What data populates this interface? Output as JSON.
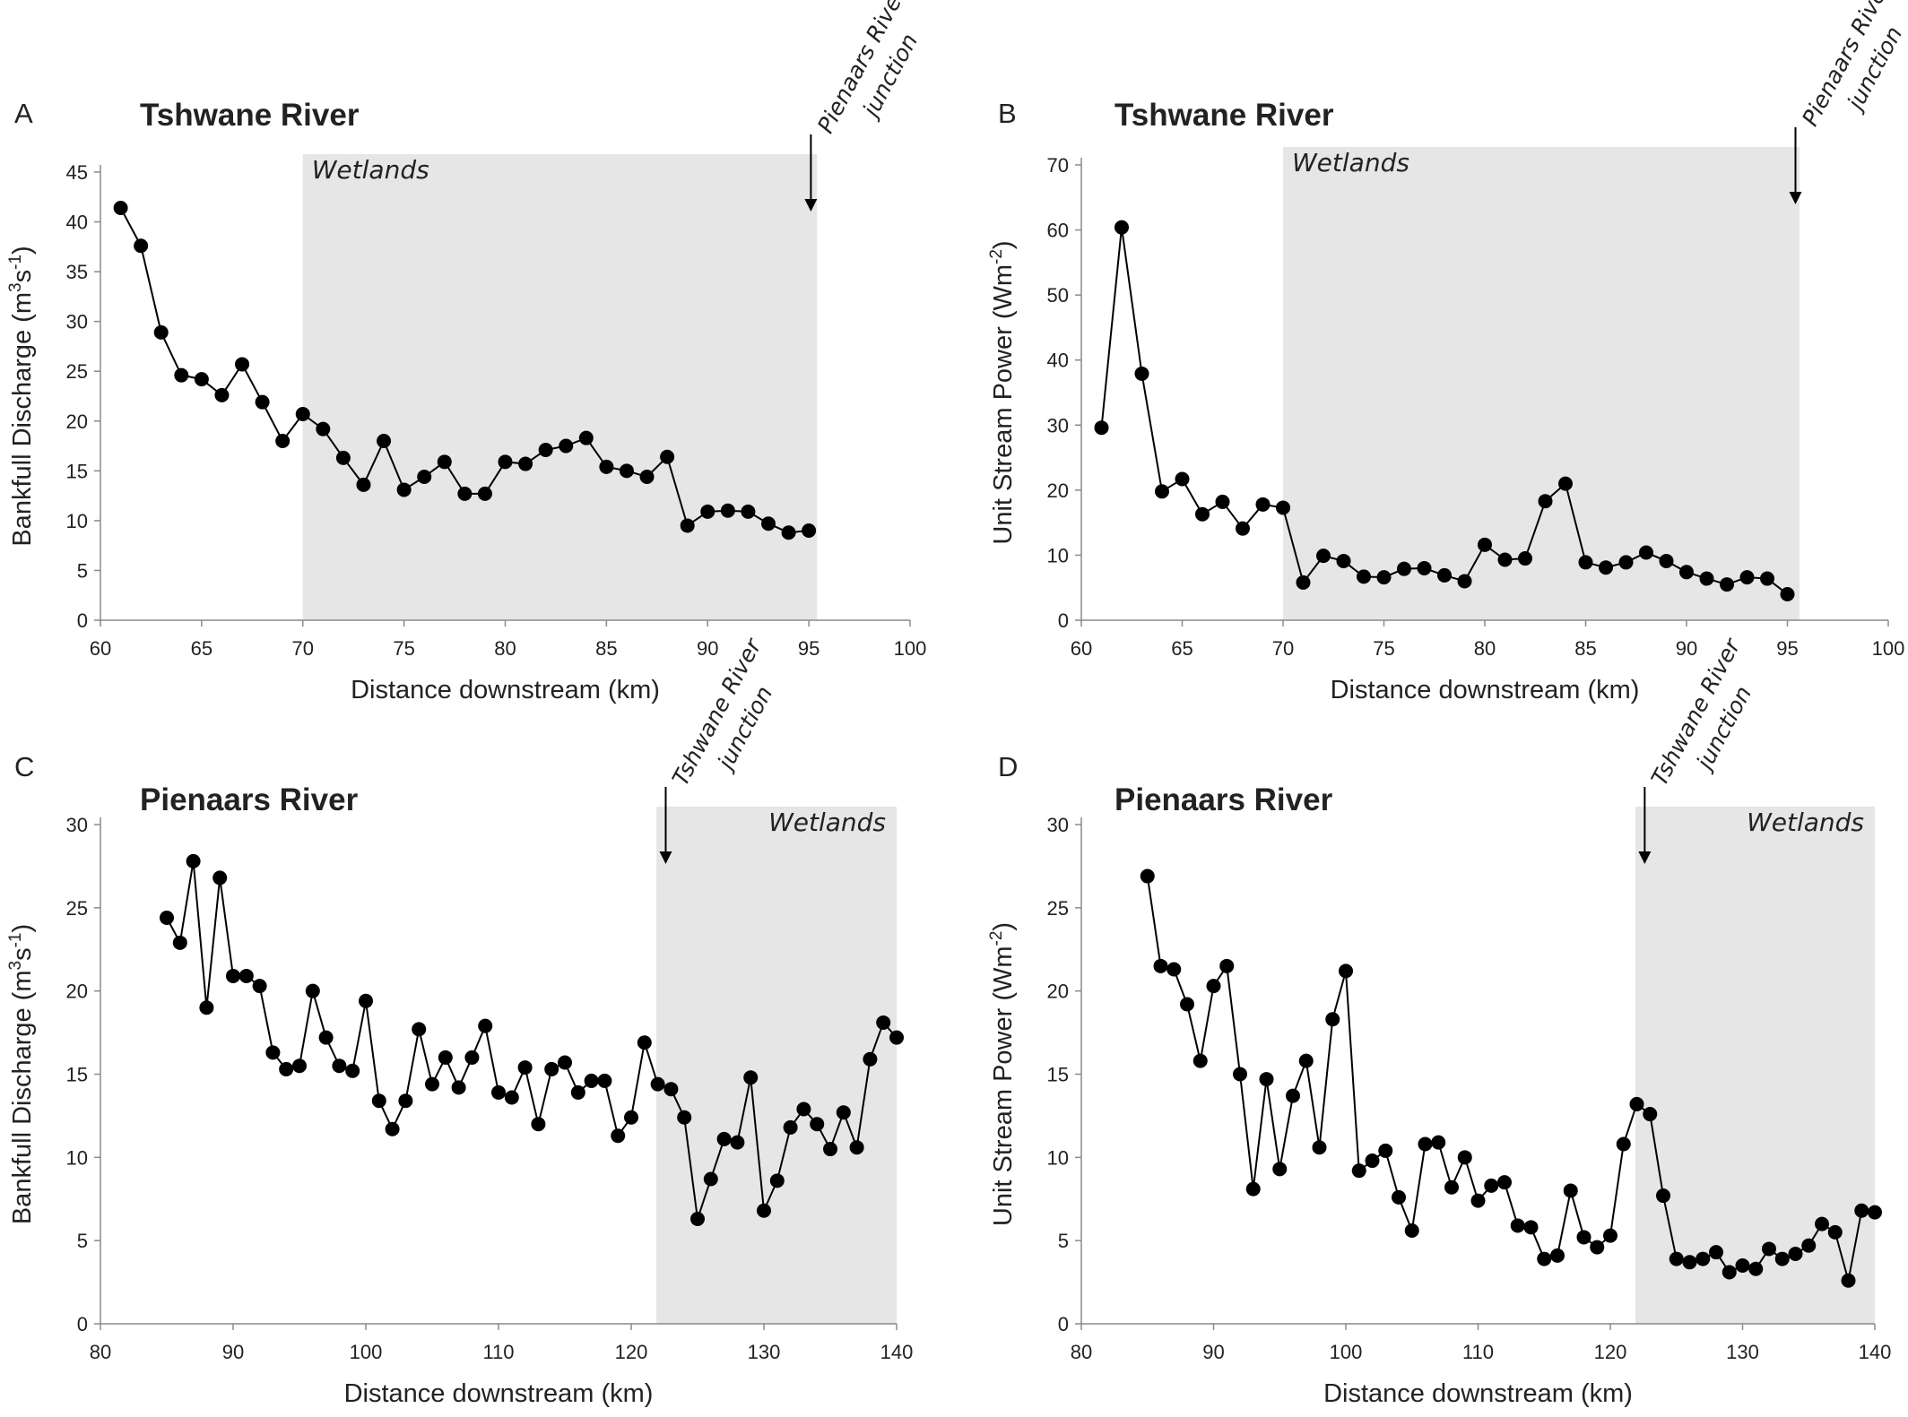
{
  "chart_data": [
    {
      "panel": "A",
      "type": "line",
      "title": "Tshwane River",
      "xlabel": "Distance downstream (km)",
      "ylabel": "Bankfull Discharge (m³s⁻¹)",
      "ylabel_parts": [
        "Bankfull Discharge (m",
        "3",
        "s",
        "-1",
        ")"
      ],
      "xlim": [
        60,
        100
      ],
      "ylim": [
        0,
        45
      ],
      "xticks": [
        60,
        65,
        70,
        75,
        80,
        85,
        90,
        95,
        100
      ],
      "yticks": [
        0,
        5,
        10,
        15,
        20,
        25,
        30,
        35,
        40,
        45
      ],
      "region": {
        "label": "Wetlands",
        "x_start": 70,
        "x_end": 95.4
      },
      "junction": {
        "lines": [
          "Pienaars River",
          "junction"
        ],
        "x": 95.1
      },
      "x": [
        61,
        62,
        63,
        64,
        65,
        66,
        67,
        68,
        69,
        70,
        71,
        72,
        73,
        74,
        75,
        76,
        77,
        78,
        79,
        80,
        81,
        82,
        83,
        84,
        85,
        86,
        87,
        88,
        89,
        90,
        91,
        92,
        93,
        94,
        95
      ],
      "values": [
        41.4,
        37.6,
        28.9,
        24.6,
        24.2,
        22.6,
        25.7,
        21.9,
        18.0,
        20.7,
        19.2,
        16.3,
        13.6,
        18.0,
        13.1,
        14.4,
        15.9,
        12.7,
        12.7,
        15.9,
        15.7,
        17.1,
        17.5,
        18.3,
        15.4,
        15.0,
        14.4,
        16.4,
        9.5,
        10.9,
        11.0,
        10.9,
        9.7,
        8.8,
        9.0
      ]
    },
    {
      "panel": "B",
      "type": "line",
      "title": "Tshwane River",
      "xlabel": "Distance downstream (km)",
      "ylabel": "Unit Stream Power (Wm⁻²)",
      "ylabel_parts": [
        "Unit Stream Power (Wm",
        "-2",
        ")"
      ],
      "xlim": [
        60,
        100
      ],
      "ylim": [
        0,
        70
      ],
      "xticks": [
        60,
        65,
        70,
        75,
        80,
        85,
        90,
        95,
        100
      ],
      "yticks": [
        0,
        10,
        20,
        30,
        40,
        50,
        60,
        70
      ],
      "region": {
        "label": "Wetlands",
        "x_start": 70,
        "x_end": 95.6
      },
      "junction": {
        "lines": [
          "Pienaars River",
          "junction"
        ],
        "x": 95.4
      },
      "x": [
        61,
        62,
        63,
        64,
        65,
        66,
        67,
        68,
        69,
        70,
        71,
        72,
        73,
        74,
        75,
        76,
        77,
        78,
        79,
        80,
        81,
        82,
        83,
        84,
        85,
        86,
        87,
        88,
        89,
        90,
        91,
        92,
        93,
        94,
        95
      ],
      "values": [
        29.6,
        60.4,
        37.9,
        19.8,
        21.7,
        16.3,
        18.2,
        14.1,
        17.8,
        17.3,
        5.8,
        9.9,
        9.1,
        6.7,
        6.6,
        7.9,
        8.0,
        6.9,
        6.0,
        11.6,
        9.3,
        9.5,
        18.3,
        21.0,
        8.9,
        8.1,
        8.9,
        10.4,
        9.1,
        7.4,
        6.4,
        5.5,
        6.6,
        6.4,
        4.0
      ]
    },
    {
      "panel": "C",
      "type": "line",
      "title": "Pienaars River",
      "xlabel": "Distance downstream (km)",
      "ylabel": "Bankfull Discharge (m³s⁻¹)",
      "ylabel_parts": [
        "Bankfull Discharge (m",
        "3",
        "s",
        "-1",
        ")"
      ],
      "xlim": [
        80,
        140
      ],
      "ylim": [
        0,
        30
      ],
      "xticks": [
        80,
        90,
        100,
        110,
        120,
        130,
        140
      ],
      "yticks": [
        0,
        5,
        10,
        15,
        20,
        25,
        30
      ],
      "region": {
        "label": "Wetlands",
        "x_start": 121.9,
        "x_end": 140
      },
      "junction": {
        "lines": [
          "Tshwane River",
          "junction"
        ],
        "x": 122.6
      },
      "x": [
        85,
        86,
        87,
        88,
        89,
        90,
        91,
        92,
        93,
        94,
        95,
        96,
        97,
        98,
        99,
        100,
        101,
        102,
        103,
        104,
        105,
        106,
        107,
        108,
        109,
        110,
        111,
        112,
        113,
        114,
        115,
        116,
        117,
        118,
        119,
        120,
        121,
        122,
        123,
        124,
        125,
        126,
        127,
        128,
        129,
        130,
        131,
        132,
        133,
        134,
        135,
        136,
        137,
        138,
        139,
        140
      ],
      "values": [
        24.4,
        22.9,
        27.8,
        19.0,
        26.8,
        20.9,
        20.9,
        20.3,
        16.3,
        15.3,
        15.5,
        20.0,
        17.2,
        15.5,
        15.2,
        19.4,
        13.4,
        11.7,
        13.4,
        17.7,
        14.4,
        16.0,
        14.2,
        16.0,
        17.9,
        13.9,
        13.6,
        15.4,
        12.0,
        15.3,
        15.7,
        13.9,
        14.6,
        14.6,
        11.3,
        12.4,
        16.9,
        14.4,
        14.1,
        12.4,
        6.3,
        8.7,
        11.1,
        10.9,
        14.8,
        6.8,
        8.6,
        11.8,
        12.9,
        12.0,
        10.5,
        12.7,
        10.6,
        15.9,
        18.1,
        17.2
      ]
    },
    {
      "panel": "D",
      "type": "line",
      "title": "Pienaars River",
      "xlabel": "Distance downstream (km)",
      "ylabel": "Unit Stream Power (Wm⁻²)",
      "ylabel_parts": [
        "Unit Stream Power (Wm",
        "-2",
        ")"
      ],
      "xlim": [
        80,
        140
      ],
      "ylim": [
        0,
        30
      ],
      "xticks": [
        80,
        90,
        100,
        110,
        120,
        130,
        140
      ],
      "yticks": [
        0,
        5,
        10,
        15,
        20,
        25,
        30
      ],
      "region": {
        "label": "Wetlands",
        "x_start": 121.9,
        "x_end": 140
      },
      "junction": {
        "lines": [
          "Tshwane River",
          "junction"
        ],
        "x": 122.6
      },
      "x": [
        85,
        86,
        87,
        88,
        89,
        90,
        91,
        92,
        93,
        94,
        95,
        96,
        97,
        98,
        99,
        100,
        101,
        102,
        103,
        104,
        105,
        106,
        107,
        108,
        109,
        110,
        111,
        112,
        113,
        114,
        115,
        116,
        117,
        118,
        119,
        120,
        121,
        122,
        123,
        124,
        125,
        126,
        127,
        128,
        129,
        130,
        131,
        132,
        133,
        134,
        135,
        136,
        137,
        138,
        139,
        140
      ],
      "values": [
        26.9,
        21.5,
        21.3,
        19.2,
        15.8,
        20.3,
        21.5,
        15.0,
        8.1,
        14.7,
        9.3,
        13.7,
        15.8,
        10.6,
        18.3,
        21.2,
        9.2,
        9.8,
        10.4,
        7.6,
        5.6,
        10.8,
        10.9,
        8.2,
        10.0,
        7.4,
        8.3,
        8.5,
        5.9,
        5.8,
        3.9,
        4.1,
        8.0,
        5.2,
        4.6,
        5.3,
        10.8,
        13.2,
        12.6,
        7.7,
        3.9,
        3.7,
        3.9,
        4.3,
        3.1,
        3.5,
        3.3,
        4.5,
        3.9,
        4.2,
        4.7,
        6.0,
        5.5,
        2.6,
        6.8,
        6.7
      ]
    }
  ]
}
